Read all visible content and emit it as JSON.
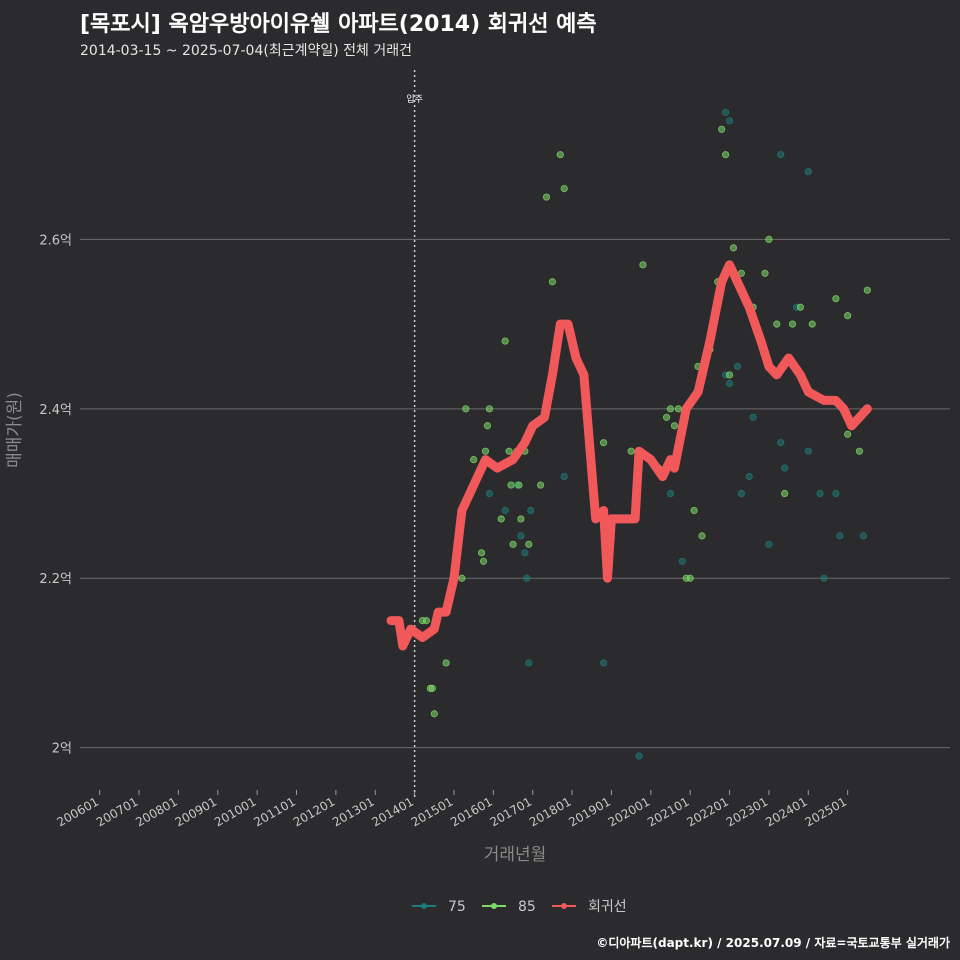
{
  "header": {
    "title": "[목포시] 옥암우방아이유쉘 아파트(2014) 회귀선 예측",
    "subtitle": "2014-03-15 ~ 2025-07-04(최근계약일) 전체 거래건"
  },
  "caption": "©디아파트(dapt.kr) / 2025.07.09 / 자료=국토교통부 실거래가",
  "chart_data": {
    "type": "scatter",
    "title": "[목포시] 옥암우방아이유쉘 아파트(2014) 회귀선 예측",
    "xlabel": "거래년월",
    "ylabel": "매매가(원)",
    "xlim": [
      2005.5,
      2027.6
    ],
    "ylim": [
      1.95,
      2.8
    ],
    "x_ticks": [
      {
        "x": 2006.0,
        "label": "200601"
      },
      {
        "x": 2007.0,
        "label": "200701"
      },
      {
        "x": 2008.0,
        "label": "200801"
      },
      {
        "x": 2009.0,
        "label": "200901"
      },
      {
        "x": 2010.0,
        "label": "201001"
      },
      {
        "x": 2011.0,
        "label": "201101"
      },
      {
        "x": 2012.0,
        "label": "201201"
      },
      {
        "x": 2013.0,
        "label": "201301"
      },
      {
        "x": 2014.0,
        "label": "201401"
      },
      {
        "x": 2015.0,
        "label": "201501"
      },
      {
        "x": 2016.0,
        "label": "201601"
      },
      {
        "x": 2017.0,
        "label": "201701"
      },
      {
        "x": 2018.0,
        "label": "201801"
      },
      {
        "x": 2019.0,
        "label": "201901"
      },
      {
        "x": 2020.0,
        "label": "202001"
      },
      {
        "x": 2021.0,
        "label": "202101"
      },
      {
        "x": 2022.0,
        "label": "202201"
      },
      {
        "x": 2023.0,
        "label": "202301"
      },
      {
        "x": 2024.0,
        "label": "202401"
      },
      {
        "x": 2025.0,
        "label": "202501"
      }
    ],
    "y_ticks": [
      {
        "y": 2.0,
        "label": "2억"
      },
      {
        "y": 2.2,
        "label": "2.2억"
      },
      {
        "y": 2.4,
        "label": "2.4억"
      },
      {
        "y": 2.6,
        "label": "2.6억"
      }
    ],
    "grid": true,
    "legend_position": "bottom",
    "annotation": {
      "x": 2014.0,
      "label": "입주"
    },
    "series": [
      {
        "name": "75",
        "color": "#1f7a7a",
        "points": [
          [
            2015.9,
            2.3
          ],
          [
            2016.3,
            2.28
          ],
          [
            2016.6,
            2.31
          ],
          [
            2016.7,
            2.25
          ],
          [
            2016.8,
            2.23
          ],
          [
            2016.85,
            2.2
          ],
          [
            2016.9,
            2.1
          ],
          [
            2016.95,
            2.28
          ],
          [
            2017.8,
            2.32
          ],
          [
            2018.8,
            2.1
          ],
          [
            2019.7,
            1.99
          ],
          [
            2020.5,
            2.3
          ],
          [
            2020.8,
            2.22
          ],
          [
            2021.9,
            2.44
          ],
          [
            2022.0,
            2.43
          ],
          [
            2022.2,
            2.45
          ],
          [
            2022.3,
            2.3
          ],
          [
            2022.5,
            2.32
          ],
          [
            2022.6,
            2.39
          ],
          [
            2023.0,
            2.24
          ],
          [
            2023.3,
            2.36
          ],
          [
            2023.4,
            2.33
          ],
          [
            2023.7,
            2.52
          ],
          [
            2024.0,
            2.68
          ],
          [
            2024.0,
            2.35
          ],
          [
            2024.3,
            2.3
          ],
          [
            2024.4,
            2.2
          ],
          [
            2024.7,
            2.3
          ],
          [
            2024.8,
            2.25
          ],
          [
            2025.4,
            2.25
          ],
          [
            2023.3,
            2.7
          ],
          [
            2021.9,
            2.75
          ],
          [
            2022.0,
            2.74
          ]
        ]
      },
      {
        "name": "85",
        "color": "#7fd96a",
        "points": [
          [
            2014.2,
            2.15
          ],
          [
            2014.3,
            2.15
          ],
          [
            2014.4,
            2.07
          ],
          [
            2014.45,
            2.07
          ],
          [
            2014.5,
            2.04
          ],
          [
            2014.8,
            2.1
          ],
          [
            2015.2,
            2.2
          ],
          [
            2015.3,
            2.4
          ],
          [
            2015.5,
            2.34
          ],
          [
            2015.7,
            2.23
          ],
          [
            2015.75,
            2.22
          ],
          [
            2015.8,
            2.35
          ],
          [
            2015.85,
            2.38
          ],
          [
            2015.9,
            2.4
          ],
          [
            2016.2,
            2.27
          ],
          [
            2016.3,
            2.48
          ],
          [
            2016.4,
            2.35
          ],
          [
            2016.45,
            2.31
          ],
          [
            2016.5,
            2.24
          ],
          [
            2016.6,
            2.35
          ],
          [
            2016.65,
            2.31
          ],
          [
            2016.7,
            2.27
          ],
          [
            2016.8,
            2.35
          ],
          [
            2016.9,
            2.24
          ],
          [
            2017.2,
            2.31
          ],
          [
            2017.35,
            2.65
          ],
          [
            2017.5,
            2.55
          ],
          [
            2017.7,
            2.7
          ],
          [
            2017.8,
            2.66
          ],
          [
            2018.8,
            2.36
          ],
          [
            2019.5,
            2.35
          ],
          [
            2019.8,
            2.57
          ],
          [
            2020.2,
            2.33
          ],
          [
            2020.4,
            2.39
          ],
          [
            2020.5,
            2.4
          ],
          [
            2020.6,
            2.38
          ],
          [
            2020.7,
            2.4
          ],
          [
            2020.9,
            2.2
          ],
          [
            2021.0,
            2.2
          ],
          [
            2021.1,
            2.28
          ],
          [
            2021.2,
            2.45
          ],
          [
            2021.3,
            2.25
          ],
          [
            2021.5,
            2.47
          ],
          [
            2021.7,
            2.55
          ],
          [
            2021.8,
            2.73
          ],
          [
            2021.9,
            2.7
          ],
          [
            2022.0,
            2.44
          ],
          [
            2022.1,
            2.59
          ],
          [
            2022.3,
            2.56
          ],
          [
            2022.6,
            2.52
          ],
          [
            2022.9,
            2.56
          ],
          [
            2023.0,
            2.6
          ],
          [
            2023.2,
            2.5
          ],
          [
            2023.4,
            2.3
          ],
          [
            2023.6,
            2.5
          ],
          [
            2023.8,
            2.52
          ],
          [
            2024.1,
            2.5
          ],
          [
            2024.7,
            2.53
          ],
          [
            2025.0,
            2.51
          ],
          [
            2025.3,
            2.35
          ],
          [
            2025.5,
            2.54
          ],
          [
            2025.0,
            2.37
          ]
        ]
      },
      {
        "name": "회귀선",
        "color": "#f0585a",
        "type": "line",
        "points": [
          [
            2013.4,
            2.15
          ],
          [
            2013.6,
            2.15
          ],
          [
            2013.7,
            2.12
          ],
          [
            2013.9,
            2.14
          ],
          [
            2014.2,
            2.13
          ],
          [
            2014.5,
            2.14
          ],
          [
            2014.6,
            2.16
          ],
          [
            2014.8,
            2.16
          ],
          [
            2014.9,
            2.18
          ],
          [
            2015.0,
            2.2
          ],
          [
            2015.2,
            2.28
          ],
          [
            2015.5,
            2.31
          ],
          [
            2015.8,
            2.34
          ],
          [
            2016.1,
            2.33
          ],
          [
            2016.5,
            2.34
          ],
          [
            2016.8,
            2.36
          ],
          [
            2017.0,
            2.38
          ],
          [
            2017.3,
            2.39
          ],
          [
            2017.5,
            2.44
          ],
          [
            2017.7,
            2.5
          ],
          [
            2017.9,
            2.5
          ],
          [
            2018.1,
            2.46
          ],
          [
            2018.3,
            2.44
          ],
          [
            2018.6,
            2.27
          ],
          [
            2018.8,
            2.28
          ],
          [
            2018.9,
            2.2
          ],
          [
            2019.0,
            2.27
          ],
          [
            2019.3,
            2.27
          ],
          [
            2019.6,
            2.27
          ],
          [
            2019.7,
            2.35
          ],
          [
            2020.0,
            2.34
          ],
          [
            2020.3,
            2.32
          ],
          [
            2020.5,
            2.34
          ],
          [
            2020.6,
            2.33
          ],
          [
            2020.9,
            2.4
          ],
          [
            2021.2,
            2.42
          ],
          [
            2021.5,
            2.48
          ],
          [
            2021.8,
            2.55
          ],
          [
            2022.0,
            2.57
          ],
          [
            2022.2,
            2.55
          ],
          [
            2022.5,
            2.52
          ],
          [
            2022.8,
            2.48
          ],
          [
            2023.0,
            2.45
          ],
          [
            2023.2,
            2.44
          ],
          [
            2023.5,
            2.46
          ],
          [
            2023.8,
            2.44
          ],
          [
            2024.0,
            2.42
          ],
          [
            2024.4,
            2.41
          ],
          [
            2024.7,
            2.41
          ],
          [
            2024.9,
            2.4
          ],
          [
            2025.1,
            2.38
          ],
          [
            2025.3,
            2.39
          ],
          [
            2025.5,
            2.4
          ]
        ]
      }
    ]
  },
  "legend": {
    "items": [
      {
        "label": "75",
        "color": "#1f7a7a"
      },
      {
        "label": "85",
        "color": "#7fd96a"
      },
      {
        "label": "회귀선",
        "color": "#f0585a"
      }
    ]
  }
}
